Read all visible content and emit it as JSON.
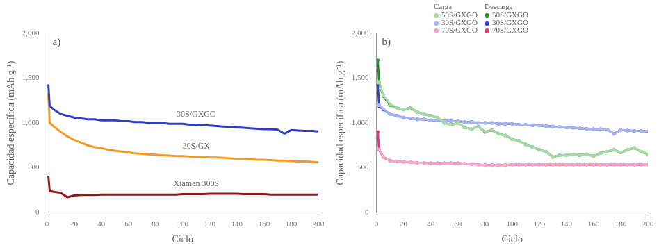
{
  "chart_data": [
    {
      "type": "line",
      "title": "a)",
      "x_label": "Ciclo",
      "y_label": "Capacidad específica (mAh g⁻¹)",
      "x": [
        1,
        2,
        5,
        10,
        15,
        20,
        25,
        30,
        35,
        40,
        45,
        50,
        55,
        60,
        65,
        70,
        75,
        80,
        85,
        90,
        95,
        100,
        105,
        110,
        115,
        120,
        125,
        130,
        135,
        140,
        145,
        150,
        155,
        160,
        165,
        170,
        175,
        180,
        185,
        190,
        195,
        200
      ],
      "xlim": [
        0,
        200
      ],
      "xticks": [
        0,
        20,
        40,
        60,
        80,
        100,
        120,
        140,
        160,
        180,
        200
      ],
      "ylim": [
        0,
        2000
      ],
      "yticks": [
        0,
        500,
        1000,
        1500,
        2000
      ],
      "grid": false,
      "series": [
        {
          "name": "30S/GXGO",
          "color": "#2f3fc4",
          "marker": "none",
          "line_style": "solid",
          "values": [
            1430,
            1190,
            1150,
            1100,
            1080,
            1060,
            1050,
            1040,
            1040,
            1030,
            1030,
            1030,
            1020,
            1020,
            1010,
            1010,
            1000,
            1000,
            1000,
            990,
            990,
            990,
            980,
            980,
            975,
            970,
            965,
            960,
            955,
            950,
            945,
            940,
            935,
            930,
            930,
            925,
            880,
            920,
            915,
            910,
            910,
            905
          ]
        },
        {
          "name": "30S/GX",
          "color": "#f39a1e",
          "marker": "none",
          "line_style": "solid",
          "values": [
            1330,
            1000,
            960,
            900,
            850,
            810,
            780,
            750,
            730,
            720,
            700,
            690,
            680,
            670,
            660,
            655,
            650,
            645,
            640,
            635,
            630,
            630,
            625,
            620,
            620,
            615,
            615,
            610,
            605,
            600,
            600,
            595,
            590,
            590,
            585,
            580,
            580,
            575,
            570,
            570,
            565,
            560
          ]
        },
        {
          "name": "Xiamen 300S",
          "color": "#8b1a1a",
          "marker": "none",
          "line_style": "solid",
          "values": [
            410,
            240,
            230,
            220,
            170,
            190,
            195,
            195,
            195,
            200,
            200,
            200,
            200,
            200,
            200,
            200,
            200,
            200,
            200,
            200,
            200,
            205,
            205,
            205,
            205,
            210,
            210,
            210,
            210,
            210,
            205,
            205,
            205,
            205,
            200,
            200,
            200,
            200,
            200,
            200,
            200,
            200
          ]
        }
      ]
    },
    {
      "type": "line",
      "title": "b)",
      "x_label": "Ciclo",
      "y_label": "Capacidad específica (mAh g⁻¹)",
      "x": [
        1,
        2,
        5,
        10,
        15,
        20,
        25,
        30,
        35,
        40,
        45,
        50,
        55,
        60,
        65,
        70,
        75,
        80,
        85,
        90,
        95,
        100,
        105,
        110,
        115,
        120,
        125,
        130,
        135,
        140,
        145,
        150,
        155,
        160,
        165,
        170,
        175,
        180,
        185,
        190,
        195,
        200
      ],
      "xlim": [
        0,
        200
      ],
      "xticks": [
        0,
        20,
        40,
        60,
        80,
        100,
        120,
        140,
        160,
        180,
        200
      ],
      "ylim": [
        0,
        2000
      ],
      "yticks": [
        0,
        500,
        1000,
        1500,
        2000
      ],
      "grid": false,
      "legend": "top",
      "legend_titles": [
        "Carga",
        "Descarga"
      ],
      "series": [
        {
          "name": "50S/GXGO",
          "group": "Carga",
          "color": "#a8d8a8",
          "marker": "circle",
          "line_style": "solid",
          "values": [
            1450,
            1460,
            1310,
            1210,
            1170,
            1150,
            1170,
            1120,
            1100,
            1080,
            1060,
            1000,
            980,
            1000,
            950,
            930,
            960,
            900,
            920,
            880,
            860,
            820,
            800,
            760,
            730,
            700,
            680,
            620,
            640,
            640,
            650,
            640,
            650,
            630,
            660,
            680,
            700,
            670,
            700,
            720,
            680,
            650
          ]
        },
        {
          "name": "30S/GXGO",
          "group": "Carga",
          "color": "#a8b4f0",
          "marker": "circle",
          "line_style": "solid",
          "values": [
            1200,
            1200,
            1155,
            1100,
            1080,
            1060,
            1050,
            1040,
            1040,
            1030,
            1030,
            1030,
            1020,
            1020,
            1010,
            1010,
            1000,
            1000,
            1000,
            990,
            990,
            990,
            980,
            980,
            975,
            970,
            965,
            960,
            955,
            950,
            945,
            940,
            935,
            930,
            930,
            925,
            880,
            920,
            915,
            910,
            910,
            905
          ]
        },
        {
          "name": "70S/GXGO",
          "group": "Carga",
          "color": "#f4a8c8",
          "marker": "circle",
          "line_style": "solid",
          "values": [
            700,
            705,
            625,
            580,
            570,
            565,
            560,
            555,
            555,
            550,
            550,
            550,
            550,
            550,
            545,
            540,
            535,
            530,
            530,
            530,
            530,
            535,
            535,
            535,
            535,
            535,
            535,
            535,
            535,
            535,
            535,
            535,
            535,
            535,
            535,
            535,
            535,
            535,
            535,
            535,
            535,
            535
          ]
        },
        {
          "name": "50S/GXGO",
          "group": "Descarga",
          "color": "#1e8c2a",
          "marker": "circle",
          "line_style": "solid",
          "values": [
            1700,
            1450,
            1300,
            1200,
            1170,
            1150,
            1170,
            1120,
            1100,
            1080,
            1060,
            1000,
            980,
            1000,
            950,
            930,
            960,
            900,
            920,
            880,
            860,
            820,
            800,
            760,
            730,
            700,
            680,
            620,
            640,
            640,
            650,
            640,
            650,
            630,
            660,
            680,
            700,
            670,
            700,
            720,
            680,
            650
          ]
        },
        {
          "name": "30S/GXGO",
          "group": "Descarga",
          "color": "#2f3fc4",
          "marker": "circle",
          "line_style": "solid",
          "values": [
            1430,
            1190,
            1150,
            1100,
            1080,
            1060,
            1050,
            1040,
            1040,
            1030,
            1030,
            1030,
            1020,
            1020,
            1010,
            1010,
            1000,
            1000,
            1000,
            990,
            990,
            990,
            980,
            980,
            975,
            970,
            965,
            960,
            955,
            950,
            945,
            940,
            935,
            930,
            930,
            925,
            880,
            920,
            915,
            910,
            910,
            905
          ]
        },
        {
          "name": "70S/GXGO",
          "group": "Descarga",
          "color": "#e8317a",
          "marker": "circle",
          "line_style": "solid",
          "values": [
            900,
            700,
            620,
            580,
            570,
            565,
            560,
            555,
            555,
            550,
            550,
            550,
            550,
            550,
            545,
            540,
            535,
            530,
            530,
            530,
            530,
            535,
            535,
            535,
            535,
            535,
            535,
            535,
            535,
            535,
            535,
            535,
            535,
            535,
            535,
            535,
            535,
            535,
            535,
            535,
            535,
            535
          ]
        }
      ]
    }
  ]
}
